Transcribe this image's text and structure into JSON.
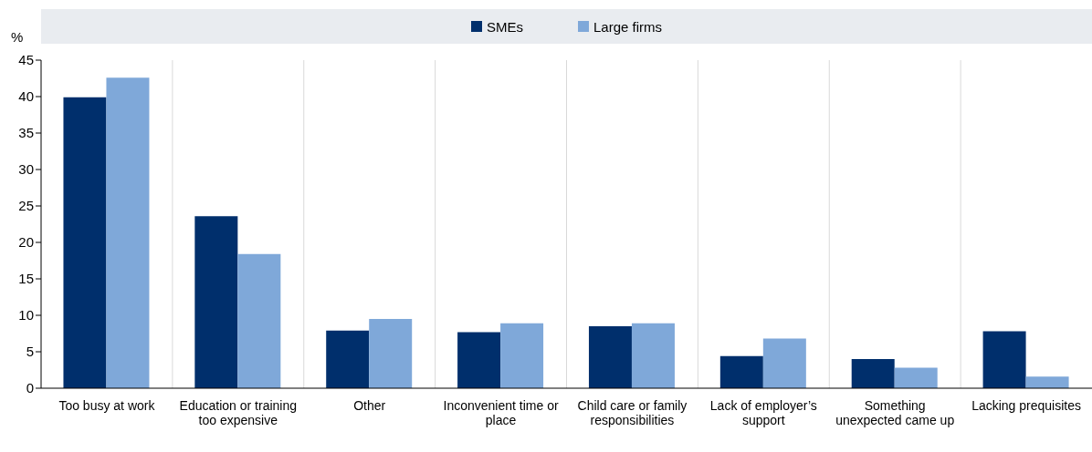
{
  "chart_data": {
    "type": "bar",
    "ylabel": "%",
    "categories": [
      "Too busy at work",
      "Education or training too expensive",
      "Other",
      "Inconvenient time or place",
      "Child care or family responsibilities",
      "Lack of employer’s support",
      "Something unexpected came up",
      "Lacking prequisites"
    ],
    "series": [
      {
        "name": "SMEs",
        "color": "#002f6c",
        "values": [
          39.9,
          23.6,
          7.9,
          7.7,
          8.5,
          4.4,
          4.0,
          7.8
        ]
      },
      {
        "name": "Large firms",
        "color": "#7fa8d9",
        "values": [
          42.6,
          18.4,
          9.5,
          8.9,
          8.9,
          6.8,
          2.8,
          1.6
        ]
      }
    ],
    "ylim": [
      0,
      45
    ],
    "yticks": [
      0,
      5,
      10,
      15,
      20,
      25,
      30,
      35,
      40,
      45
    ],
    "grid": "x",
    "legend": "top"
  }
}
